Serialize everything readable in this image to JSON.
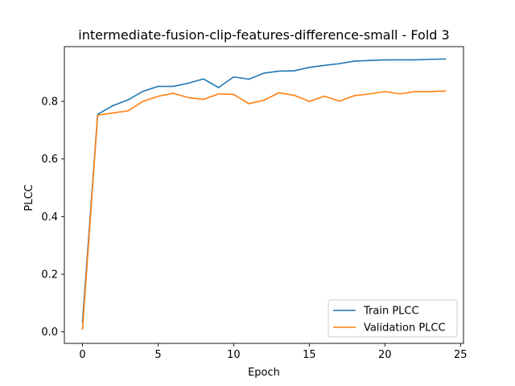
{
  "chart_data": {
    "type": "line",
    "title": "intermediate-fusion-clip-features-difference-small - Fold 3",
    "xlabel": "Epoch",
    "ylabel": "PLCC",
    "xlim": [
      -1.2,
      25.2
    ],
    "ylim": [
      -0.04,
      0.99
    ],
    "xticks": [
      0,
      5,
      10,
      15,
      20,
      25
    ],
    "yticks": [
      0.0,
      0.2,
      0.4,
      0.6,
      0.8
    ],
    "xtick_labels": [
      "0",
      "5",
      "10",
      "15",
      "20",
      "25"
    ],
    "ytick_labels": [
      "0.0",
      "0.2",
      "0.4",
      "0.6",
      "0.8"
    ],
    "grid": false,
    "legend_position": "lower-right",
    "x": [
      0,
      1,
      2,
      3,
      4,
      5,
      6,
      7,
      8,
      9,
      10,
      11,
      12,
      13,
      14,
      15,
      16,
      17,
      18,
      19,
      20,
      21,
      22,
      23,
      24
    ],
    "series": [
      {
        "name": "Train PLCC",
        "color": "#1f77b4",
        "values": [
          0.035,
          0.755,
          0.785,
          0.805,
          0.835,
          0.852,
          0.852,
          0.863,
          0.878,
          0.848,
          0.885,
          0.877,
          0.898,
          0.905,
          0.906,
          0.918,
          0.925,
          0.931,
          0.94,
          0.942,
          0.944,
          0.944,
          0.944,
          0.946,
          0.947
        ]
      },
      {
        "name": "Validation PLCC",
        "color": "#ff7f0e",
        "values": [
          0.01,
          0.752,
          0.76,
          0.767,
          0.8,
          0.818,
          0.828,
          0.813,
          0.807,
          0.826,
          0.824,
          0.792,
          0.804,
          0.83,
          0.821,
          0.8,
          0.818,
          0.801,
          0.82,
          0.826,
          0.834,
          0.826,
          0.834,
          0.834,
          0.836
        ]
      }
    ]
  }
}
